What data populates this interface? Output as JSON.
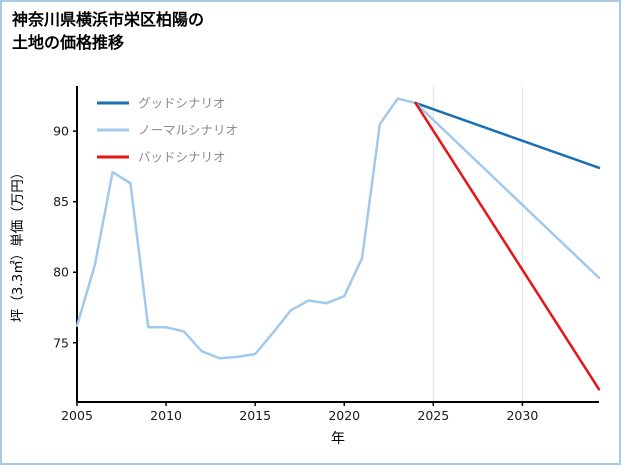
{
  "title": {
    "line1": "神奈川県横浜市栄区柏陽の",
    "line2": "土地の価格推移"
  },
  "legend": {
    "items": [
      {
        "id": "good",
        "label": "グッドシナリオ",
        "color": "#1a6fb5"
      },
      {
        "id": "normal",
        "label": "ノーマルシナリオ",
        "color": "#a1c9ee"
      },
      {
        "id": "bad",
        "label": "バッドシナリオ",
        "color": "#e61414"
      }
    ],
    "text_color": "#8c8c8c"
  },
  "chart_data": {
    "type": "line",
    "title": "神奈川県横浜市栄区柏陽の土地の価格推移",
    "xlabel": "年",
    "ylabel": "坪（3.3㎡）単価（万円）",
    "xlim": [
      2005,
      2034.3
    ],
    "ylim": [
      70.8,
      93.2
    ],
    "x_ticks": [
      2005,
      2010,
      2015,
      2020,
      2025,
      2030
    ],
    "y_ticks": [
      75,
      80,
      85,
      90
    ],
    "grid_x": [
      2025,
      2030
    ],
    "grid_color": "#e2e2e2",
    "axis_color": "#000000",
    "tick_label_color": "#1a1a1a",
    "series": [
      {
        "id": "normal-history",
        "label": "ノーマルシナリオ",
        "color": "#a1c9ee",
        "width": 2.5,
        "x": [
          2005,
          2006,
          2007,
          2008,
          2009,
          2010,
          2011,
          2012,
          2013,
          2014,
          2015,
          2016,
          2017,
          2018,
          2019,
          2020,
          2021,
          2022,
          2023,
          2024
        ],
        "values": [
          76.2,
          80.5,
          87.1,
          86.3,
          76.1,
          76.1,
          75.8,
          74.4,
          73.9,
          74.0,
          74.2,
          75.7,
          77.3,
          78.0,
          77.8,
          78.3,
          81.0,
          90.5,
          92.3,
          92.0
        ]
      },
      {
        "id": "good",
        "label": "グッドシナリオ",
        "color": "#1a6fb5",
        "width": 2.5,
        "x": [
          2024,
          2034.3
        ],
        "values": [
          92.0,
          87.4
        ]
      },
      {
        "id": "normal",
        "label": "ノーマルシナリオ",
        "color": "#a1c9ee",
        "width": 2.5,
        "x": [
          2024,
          2034.3
        ],
        "values": [
          92.0,
          79.6
        ]
      },
      {
        "id": "bad",
        "label": "バッドシナリオ",
        "color": "#e61414",
        "width": 2.5,
        "x": [
          2024,
          2034.3
        ],
        "values": [
          92.0,
          71.7
        ]
      }
    ]
  }
}
